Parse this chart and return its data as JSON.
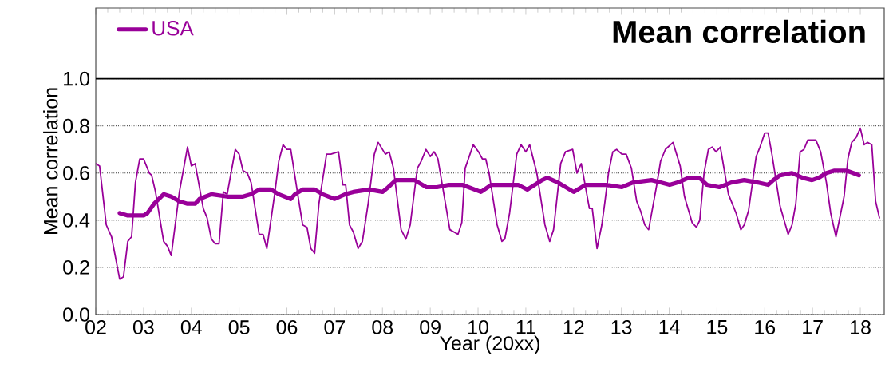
{
  "chart_data": {
    "type": "line",
    "title": "Mean correlation",
    "xlabel": "Year (20xx)",
    "ylabel": "Mean correlation",
    "xlim": [
      2,
      18.5
    ],
    "ylim": [
      0,
      1.3
    ],
    "xticks": [
      {
        "value": 2,
        "label": "02"
      },
      {
        "value": 3,
        "label": "03"
      },
      {
        "value": 4,
        "label": "04"
      },
      {
        "value": 5,
        "label": "05"
      },
      {
        "value": 6,
        "label": "06"
      },
      {
        "value": 7,
        "label": "07"
      },
      {
        "value": 8,
        "label": "08"
      },
      {
        "value": 9,
        "label": "09"
      },
      10,
      11,
      12,
      13,
      14,
      15,
      16,
      17,
      18
    ],
    "yticks": [
      {
        "value": 0,
        "label": "0.0"
      },
      0.2,
      0.4,
      0.6,
      0.8,
      {
        "value": 1,
        "label": "1.0"
      }
    ],
    "grid": "y",
    "legend": "top left",
    "marker": "none",
    "line_style": "solid",
    "ref_lines": [
      {
        "axis": "y",
        "value": 1,
        "color": "#000000",
        "line_style": "solid"
      }
    ],
    "series": [
      {
        "color": "#990099",
        "x": [
          2.0,
          2.08,
          2.22,
          2.33,
          2.5,
          2.58,
          2.67,
          2.75,
          2.83,
          2.92,
          3.0,
          3.12,
          3.17,
          3.25,
          3.42,
          3.5,
          3.58,
          3.75,
          3.92,
          4.0,
          4.08,
          4.25,
          4.33,
          4.42,
          4.5,
          4.58,
          4.67,
          4.75,
          4.92,
          5.0,
          5.08,
          5.17,
          5.25,
          5.42,
          5.5,
          5.58,
          5.75,
          5.83,
          5.92,
          6.0,
          6.08,
          6.25,
          6.33,
          6.42,
          6.5,
          6.58,
          6.67,
          6.83,
          6.92,
          7.08,
          7.17,
          7.23,
          7.31,
          7.39,
          7.49,
          7.58,
          7.7,
          7.83,
          7.91,
          8.06,
          8.14,
          8.23,
          8.39,
          8.49,
          8.58,
          8.73,
          8.81,
          8.91,
          9.0,
          9.08,
          9.16,
          9.41,
          9.58,
          9.66,
          9.73,
          9.9,
          10.01,
          10.09,
          10.16,
          10.23,
          10.4,
          10.5,
          10.56,
          10.66,
          10.81,
          10.9,
          11.0,
          11.08,
          11.23,
          11.4,
          11.5,
          11.58,
          11.73,
          11.83,
          11.98,
          12.07,
          12.16,
          12.33,
          12.39,
          12.49,
          12.59,
          12.65,
          12.73,
          12.82,
          12.9,
          13.01,
          13.1,
          13.21,
          13.32,
          13.4,
          13.49,
          13.57,
          13.74,
          13.82,
          13.92,
          14.08,
          14.23,
          14.32,
          14.48,
          14.57,
          14.64,
          14.73,
          14.82,
          14.9,
          14.98,
          15.07,
          15.24,
          15.4,
          15.5,
          15.57,
          15.66,
          15.82,
          15.9,
          16.0,
          16.07,
          16.15,
          16.32,
          16.49,
          16.57,
          16.65,
          16.74,
          16.82,
          16.9,
          17.07,
          17.17,
          17.29,
          17.38,
          17.49,
          17.66,
          17.74,
          17.82,
          17.91,
          18.0,
          18.08,
          18.15,
          18.24,
          18.32,
          18.4
        ],
        "values": [
          0.64,
          0.63,
          0.38,
          0.33,
          0.15,
          0.16,
          0.31,
          0.33,
          0.56,
          0.66,
          0.66,
          0.6,
          0.59,
          0.52,
          0.31,
          0.29,
          0.25,
          0.52,
          0.71,
          0.63,
          0.64,
          0.45,
          0.41,
          0.32,
          0.3,
          0.3,
          0.52,
          0.51,
          0.7,
          0.68,
          0.61,
          0.6,
          0.56,
          0.34,
          0.34,
          0.28,
          0.52,
          0.65,
          0.72,
          0.7,
          0.7,
          0.48,
          0.38,
          0.37,
          0.28,
          0.26,
          0.47,
          0.68,
          0.68,
          0.69,
          0.55,
          0.55,
          0.38,
          0.35,
          0.28,
          0.31,
          0.47,
          0.68,
          0.73,
          0.68,
          0.69,
          0.62,
          0.36,
          0.32,
          0.38,
          0.62,
          0.65,
          0.7,
          0.67,
          0.69,
          0.66,
          0.36,
          0.34,
          0.39,
          0.62,
          0.72,
          0.69,
          0.66,
          0.66,
          0.6,
          0.38,
          0.31,
          0.32,
          0.43,
          0.68,
          0.72,
          0.69,
          0.72,
          0.6,
          0.38,
          0.31,
          0.36,
          0.64,
          0.69,
          0.7,
          0.6,
          0.64,
          0.45,
          0.45,
          0.28,
          0.38,
          0.47,
          0.6,
          0.69,
          0.7,
          0.68,
          0.68,
          0.62,
          0.48,
          0.44,
          0.38,
          0.36,
          0.55,
          0.65,
          0.7,
          0.73,
          0.63,
          0.5,
          0.39,
          0.37,
          0.4,
          0.6,
          0.7,
          0.71,
          0.69,
          0.71,
          0.51,
          0.43,
          0.36,
          0.38,
          0.44,
          0.67,
          0.71,
          0.77,
          0.77,
          0.68,
          0.46,
          0.34,
          0.38,
          0.47,
          0.69,
          0.7,
          0.74,
          0.74,
          0.69,
          0.56,
          0.43,
          0.33,
          0.5,
          0.66,
          0.73,
          0.75,
          0.79,
          0.72,
          0.73,
          0.72,
          0.48,
          0.41
        ]
      },
      {
        "name": "USA",
        "color": "#990099",
        "x": [
          2.5,
          2.67,
          3.0,
          3.08,
          3.22,
          3.42,
          3.58,
          3.75,
          3.92,
          4.08,
          4.17,
          4.42,
          4.75,
          4.92,
          5.08,
          5.25,
          5.42,
          5.67,
          5.83,
          6.08,
          6.17,
          6.33,
          6.58,
          6.75,
          7.0,
          7.22,
          7.39,
          7.72,
          8.0,
          8.12,
          8.28,
          8.67,
          8.92,
          9.14,
          9.39,
          9.67,
          10.06,
          10.28,
          10.62,
          10.84,
          11.03,
          11.34,
          11.45,
          11.67,
          12.0,
          12.25,
          12.67,
          13.01,
          13.24,
          13.63,
          13.82,
          14.01,
          14.18,
          14.41,
          14.63,
          14.79,
          15.05,
          15.3,
          15.57,
          15.85,
          16.07,
          16.18,
          16.32,
          16.57,
          16.79,
          16.99,
          17.13,
          17.29,
          17.46,
          17.71,
          17.85,
          17.97
        ],
        "values": [
          0.43,
          0.42,
          0.42,
          0.43,
          0.47,
          0.51,
          0.5,
          0.48,
          0.47,
          0.47,
          0.49,
          0.51,
          0.5,
          0.5,
          0.5,
          0.51,
          0.53,
          0.53,
          0.51,
          0.49,
          0.51,
          0.53,
          0.53,
          0.51,
          0.49,
          0.51,
          0.52,
          0.53,
          0.52,
          0.54,
          0.57,
          0.57,
          0.54,
          0.54,
          0.55,
          0.55,
          0.52,
          0.55,
          0.55,
          0.55,
          0.53,
          0.57,
          0.58,
          0.56,
          0.52,
          0.55,
          0.55,
          0.54,
          0.56,
          0.57,
          0.56,
          0.55,
          0.56,
          0.58,
          0.58,
          0.55,
          0.54,
          0.56,
          0.57,
          0.56,
          0.55,
          0.57,
          0.59,
          0.6,
          0.58,
          0.57,
          0.58,
          0.6,
          0.61,
          0.61,
          0.6,
          0.59
        ]
      }
    ]
  }
}
